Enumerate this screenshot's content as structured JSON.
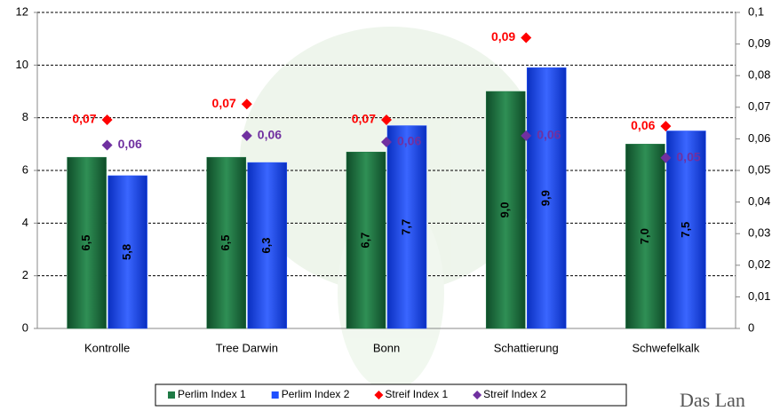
{
  "chart_data": {
    "type": "bar",
    "categories": [
      "Kontrolle",
      "Tree Darwin",
      "Bonn",
      "Schattierung",
      "Schwefelkalk"
    ],
    "series": [
      {
        "name": "Perlim Index 1",
        "type": "bar",
        "color": "#1f7a45",
        "values": [
          6.5,
          6.5,
          6.7,
          9.0,
          7.0
        ],
        "value_labels": [
          "6,5",
          "6,5",
          "6,7",
          "9,0",
          "7,0"
        ]
      },
      {
        "name": "Perlim Index 2",
        "type": "bar",
        "color": "#1f4fff",
        "values": [
          5.8,
          6.3,
          7.7,
          9.9,
          7.5
        ],
        "value_labels": [
          "5,8",
          "6,3",
          "7,7",
          "9,9",
          "7,5"
        ]
      },
      {
        "name": "Streif Index 1",
        "type": "scatter",
        "axis": "y2",
        "color": "#ff0000",
        "values": [
          0.066,
          0.071,
          0.066,
          0.092,
          0.064
        ],
        "value_labels": [
          "0,07",
          "0,07",
          "0,07",
          "0,09",
          "0,06"
        ]
      },
      {
        "name": "Streif Index 2",
        "type": "scatter",
        "axis": "y2",
        "color": "#7030a0",
        "values": [
          0.058,
          0.061,
          0.059,
          0.061,
          0.054
        ],
        "value_labels": [
          "0,06",
          "0,06",
          "0,06",
          "0,06",
          "0,05"
        ]
      }
    ],
    "ylim": [
      0,
      12
    ],
    "yticks": [
      0,
      2,
      4,
      6,
      8,
      10,
      12
    ],
    "y2lim": [
      0,
      0.1
    ],
    "y2ticks": [
      0,
      {
        "value": 0.01,
        "label": "0,01"
      },
      {
        "value": 0.02,
        "label": "0,02"
      },
      {
        "value": 0.03,
        "label": "0,03"
      },
      {
        "value": 0.04,
        "label": "0,04"
      },
      {
        "value": 0.05,
        "label": "0,05"
      },
      {
        "value": 0.06,
        "label": "0,06"
      },
      {
        "value": 0.07,
        "label": "0,07"
      },
      {
        "value": 0.08,
        "label": "0,08"
      },
      {
        "value": 0.09,
        "label": "0,09"
      },
      {
        "value": 0.1,
        "label": "0,1"
      }
    ],
    "grid": true,
    "legend": "bottom",
    "logo_text": "Das Lan"
  }
}
